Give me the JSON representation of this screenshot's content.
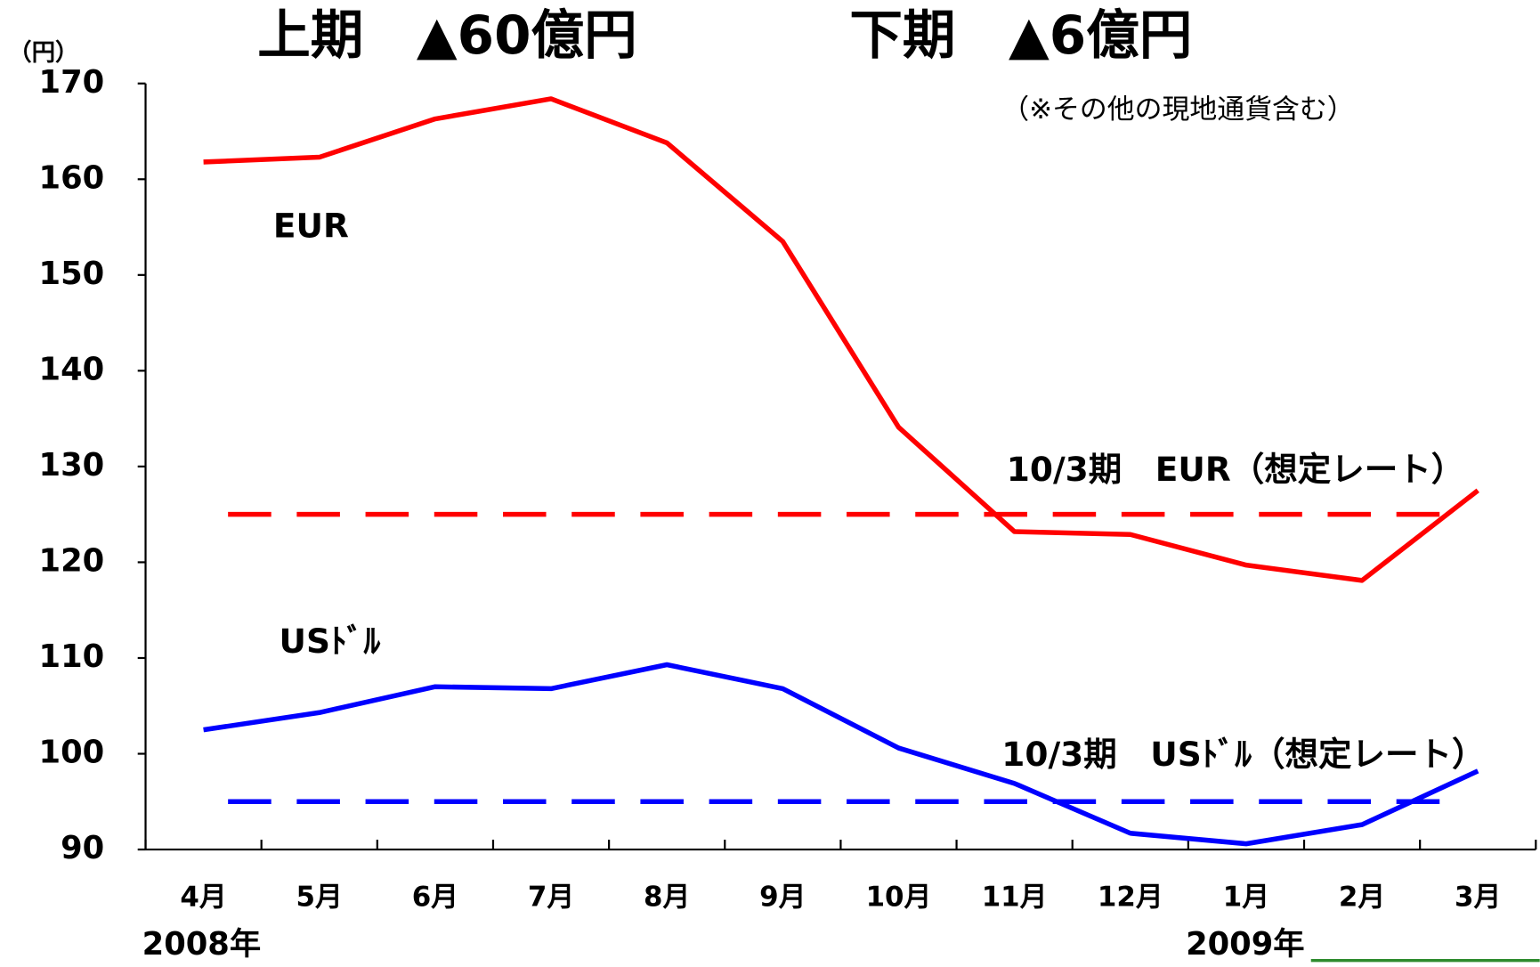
{
  "chart_data": {
    "type": "line",
    "title": [
      "上期　▲60億円",
      "下期　▲6億円"
    ],
    "y_unit": "（円）",
    "note": "（※その他の現地通貨含む）",
    "categories": [
      "4月",
      "5月",
      "6月",
      "7月",
      "8月",
      "9月",
      "10月",
      "11月",
      "12月",
      "1月",
      "2月",
      "3月"
    ],
    "year_labels": [
      "2008年",
      "2009年"
    ],
    "series": [
      {
        "name": "EUR",
        "color": "#ff0000",
        "values": [
          161.8,
          162.3,
          166.3,
          168.4,
          163.8,
          153.5,
          134.1,
          123.2,
          122.9,
          119.7,
          118.1,
          127.5
        ]
      },
      {
        "name": "USﾄﾞﾙ",
        "color": "#0000ff",
        "values": [
          102.5,
          104.3,
          107.0,
          106.8,
          109.3,
          106.8,
          100.6,
          96.9,
          91.7,
          90.6,
          92.6,
          98.2
        ]
      }
    ],
    "reference_lines": [
      {
        "label": "10/3期　EUR（想定レート）",
        "value": 125,
        "color": "#ff0000"
      },
      {
        "label": "10/3期　USﾄﾞﾙ（想定レート）",
        "value": 95,
        "color": "#0000ff"
      }
    ],
    "ylim": [
      90,
      170
    ],
    "yticks": [
      90,
      100,
      110,
      120,
      130,
      140,
      150,
      160,
      170
    ]
  }
}
